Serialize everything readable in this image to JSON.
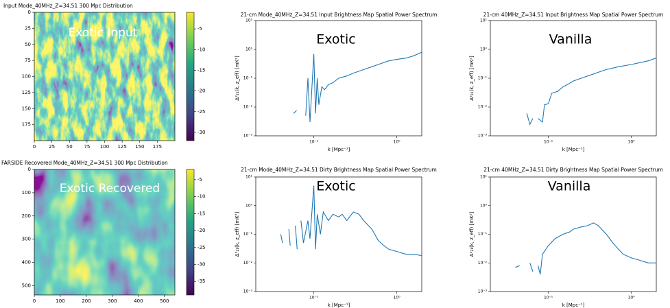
{
  "chart_data": [
    {
      "type": "heatmap",
      "title": "Input Mode_40MHz_Z=34.51 300 Mpc Distribution",
      "annotation": "Exotic Input",
      "xlim": [
        0,
        200
      ],
      "xticks": [
        0,
        25,
        50,
        75,
        100,
        125,
        150,
        175
      ],
      "ylim": [
        200,
        0
      ],
      "yticks": [
        0,
        25,
        50,
        75,
        100,
        125,
        150,
        175
      ],
      "clim": [
        -32,
        -1
      ],
      "cticks": [
        -5,
        -10,
        -15,
        -20,
        -25,
        -30
      ],
      "colormap": "viridis"
    },
    {
      "type": "line",
      "title": "21-cm Mode_40MHz_Z=34.51 Input Brightness Map Spatial Power Spectrum",
      "annotation": "Exotic",
      "xlabel": "k [Mpc⁻¹]",
      "ylabel": "Δ²₂₁(k, z_eff) [mK²]",
      "log_x": true,
      "log_y": true,
      "color": "#1f77b4",
      "xlim": [
        0.02,
        2
      ],
      "xticks": [
        {
          "value": 0.1,
          "label": "10⁻¹"
        },
        {
          "value": 1,
          "label": "10⁰"
        }
      ],
      "ylim": [
        0.001,
        10
      ],
      "yticks": [
        {
          "value": 0.001,
          "label": "10⁻³"
        },
        {
          "value": 0.01,
          "label": "10⁻²"
        },
        {
          "value": 0.1,
          "label": "10⁻¹"
        },
        {
          "value": 1,
          "label": "10⁰"
        },
        {
          "value": 10,
          "label": "10¹"
        }
      ],
      "x": [
        0.057,
        0.062,
        0.067,
        0.072,
        0.076,
        0.08,
        0.085,
        0.09,
        0.1,
        0.105,
        0.11,
        0.115,
        0.125,
        0.135,
        0.15,
        0.17,
        0.2,
        0.25,
        0.3,
        0.4,
        0.5,
        0.6,
        0.8,
        1,
        1.3,
        1.6,
        2
      ],
      "values": [
        0.006,
        0.0075,
        null,
        0.004,
        null,
        0.005,
        0.1,
        0.003,
        0.7,
        0.006,
        0.1,
        0.012,
        0.05,
        0.04,
        0.06,
        0.07,
        0.1,
        0.12,
        0.15,
        0.2,
        0.25,
        0.3,
        0.4,
        0.45,
        0.5,
        0.6,
        0.8
      ]
    },
    {
      "type": "line",
      "title": "21-cm 40MHz_Z=34.51 Input Brightness Map Spatial Power Spectrum",
      "annotation": "Vanilla",
      "xlabel": "k [Mpc⁻¹]",
      "ylabel": "Δ²₂₁(k, z_eff) [mK²]",
      "log_x": true,
      "log_y": true,
      "color": "#1f77b4",
      "xlim": [
        0.02,
        2
      ],
      "xticks": [
        {
          "value": 0.1,
          "label": "10⁻¹"
        },
        {
          "value": 1,
          "label": "10⁰"
        }
      ],
      "ylim": [
        0.001,
        10
      ],
      "yticks": [
        {
          "value": 0.001,
          "label": "10⁻³"
        },
        {
          "value": 0.01,
          "label": "10⁻²"
        },
        {
          "value": 0.1,
          "label": "10⁻¹"
        },
        {
          "value": 1,
          "label": "10⁰"
        },
        {
          "value": 10,
          "label": "10¹"
        }
      ],
      "x": [
        0.055,
        0.06,
        0.065,
        0.07,
        0.075,
        0.085,
        0.09,
        0.1,
        0.11,
        0.13,
        0.15,
        0.17,
        0.2,
        0.25,
        0.3,
        0.4,
        0.5,
        0.7,
        1,
        1.3,
        1.6,
        2
      ],
      "values": [
        0.006,
        0.0025,
        0.004,
        null,
        0.004,
        0.003,
        0.012,
        0.013,
        0.03,
        0.035,
        0.05,
        0.06,
        0.08,
        0.1,
        0.12,
        0.16,
        0.2,
        0.25,
        0.3,
        0.35,
        0.4,
        0.5
      ]
    },
    {
      "type": "heatmap",
      "title": "FARSIDE Recovered Mode_40MHz_Z=34.51 300 Mpc Distribution",
      "annotation": "Exotic Recovered",
      "xlim": [
        0,
        540
      ],
      "xticks": [
        0,
        100,
        200,
        300,
        400,
        500
      ],
      "ylim": [
        540,
        0
      ],
      "yticks": [
        0,
        100,
        200,
        300,
        400,
        500
      ],
      "clim": [
        -39,
        -2
      ],
      "cticks": [
        -5,
        -10,
        -15,
        -20,
        -25,
        -30,
        -35
      ],
      "colormap": "viridis"
    },
    {
      "type": "line",
      "title": "21-cm Mode_40MHz_Z=34.51 Dirty Brightness Map Spatial Power Spectrum",
      "annotation": "Exotic",
      "xlabel": "k [Mpc⁻¹]",
      "ylabel": "Δ²₂₁(k, z_eff) [mK²]",
      "log_x": true,
      "log_y": true,
      "color": "#1f77b4",
      "xlim": [
        0.02,
        2
      ],
      "xticks": [
        {
          "value": 0.1,
          "label": "10⁻¹"
        },
        {
          "value": 1,
          "label": "10⁰"
        }
      ],
      "ylim": [
        0.001,
        10
      ],
      "yticks": [
        {
          "value": 0.001,
          "label": "10⁻³"
        },
        {
          "value": 0.01,
          "label": "10⁻²"
        },
        {
          "value": 0.1,
          "label": "10⁻¹"
        },
        {
          "value": 1,
          "label": "10⁰"
        },
        {
          "value": 10,
          "label": "10¹"
        }
      ],
      "x": [
        0.04,
        0.042,
        0.046,
        0.05,
        0.052,
        0.056,
        0.06,
        0.063,
        0.066,
        0.07,
        0.075,
        0.085,
        0.09,
        0.1,
        0.105,
        0.11,
        0.12,
        0.13,
        0.15,
        0.17,
        0.2,
        0.22,
        0.25,
        0.3,
        0.35,
        0.4,
        0.5,
        0.6,
        0.7,
        0.8,
        1,
        1.3,
        1.6,
        2
      ],
      "values": [
        0.1,
        0.05,
        null,
        0.15,
        0.04,
        null,
        0.2,
        0.03,
        null,
        0.3,
        0.05,
        0.3,
        0.07,
        5,
        0.03,
        0.5,
        0.1,
        0.6,
        0.3,
        0.5,
        0.4,
        0.5,
        0.3,
        0.6,
        0.5,
        0.3,
        0.15,
        0.06,
        0.04,
        0.03,
        0.025,
        0.02,
        0.02,
        0.018
      ]
    },
    {
      "type": "line",
      "title": "21-cm 40MHz_Z=34.51 Dirty Brightness Map Spatial Power Spectrum",
      "annotation": "Vanilla",
      "xlabel": "k [Mpc⁻¹]",
      "ylabel": "Δ²₂₁(k, z_eff) [mK²]",
      "log_x": true,
      "log_y": true,
      "color": "#1f77b4",
      "xlim": [
        0.02,
        2
      ],
      "xticks": [
        {
          "value": 0.1,
          "label": "10⁻¹"
        },
        {
          "value": 1,
          "label": "10⁰"
        }
      ],
      "ylim": [
        0.001,
        10
      ],
      "yticks": [
        {
          "value": 0.001,
          "label": "10⁻³"
        },
        {
          "value": 0.01,
          "label": "10⁻²"
        },
        {
          "value": 0.1,
          "label": "10⁻¹"
        },
        {
          "value": 1,
          "label": "10⁰"
        },
        {
          "value": 10,
          "label": "10¹"
        }
      ],
      "x": [
        0.04,
        0.045,
        0.052,
        0.06,
        0.065,
        0.07,
        0.075,
        0.08,
        0.085,
        0.1,
        0.12,
        0.15,
        0.18,
        0.2,
        0.25,
        0.3,
        0.35,
        0.4,
        0.5,
        0.6,
        0.7,
        0.8,
        1,
        1.3,
        1.6,
        2
      ],
      "values": [
        0.007,
        0.008,
        null,
        0.01,
        0.005,
        null,
        0.008,
        0.004,
        0.02,
        0.04,
        0.07,
        0.1,
        0.12,
        0.15,
        0.18,
        0.2,
        0.25,
        0.2,
        0.1,
        0.05,
        0.03,
        0.02,
        0.015,
        0.012,
        0.01,
        0.01
      ]
    }
  ]
}
